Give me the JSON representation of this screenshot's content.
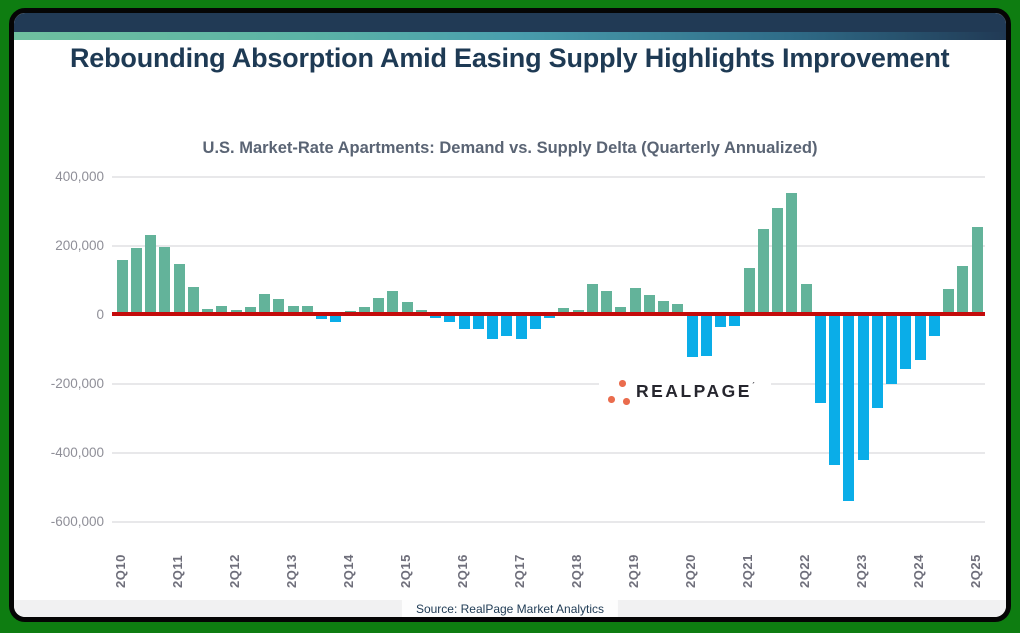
{
  "header": {
    "title": "Rebounding Absorption Amid Easing Supply Highlights Improvement"
  },
  "footer": {
    "source": "Source: RealPage Market Analytics"
  },
  "logo": {
    "name": "RealPage",
    "text": "REALPAGE",
    "dot_color": "#ea6c4d",
    "text_color": "#26262e"
  },
  "colors": {
    "frame_green": "#0e7d11",
    "frame_border": "#050505",
    "header_navy": "#213a55",
    "accent_gradient_left": "#6fc09f",
    "accent_gradient_right": "#213a55",
    "title_navy": "#1e3a54",
    "subtitle_gray": "#5a6474",
    "axis_label_gray": "#8f8f98",
    "grid_gray": "#e8e8ea"
  },
  "chart_data": {
    "type": "bar",
    "title": "U.S. Market-Rate Apartments: Demand vs. Supply Delta (Quarterly Annualized)",
    "xlabel": "",
    "ylabel": "",
    "ylim": [
      -600000,
      400000
    ],
    "yticks": [
      400000,
      200000,
      0,
      -200000,
      -400000,
      -600000
    ],
    "grid": true,
    "legend": "none",
    "zero_line": true,
    "x_tick_every": 4,
    "positive_color": "#63b39a",
    "negative_color": "#0aade8",
    "zero_line_color": "#c40b0b",
    "x": [
      "2Q10",
      "3Q10",
      "4Q10",
      "1Q11",
      "2Q11",
      "3Q11",
      "4Q11",
      "1Q12",
      "2Q12",
      "3Q12",
      "4Q12",
      "1Q13",
      "2Q13",
      "3Q13",
      "4Q13",
      "1Q14",
      "2Q14",
      "3Q14",
      "4Q14",
      "1Q15",
      "2Q15",
      "3Q15",
      "4Q15",
      "1Q16",
      "2Q16",
      "3Q16",
      "4Q16",
      "1Q17",
      "2Q17",
      "3Q17",
      "4Q17",
      "1Q18",
      "2Q18",
      "3Q18",
      "4Q18",
      "1Q19",
      "2Q19",
      "3Q19",
      "4Q19",
      "1Q20",
      "2Q20",
      "3Q20",
      "4Q20",
      "1Q21",
      "2Q21",
      "3Q21",
      "4Q21",
      "1Q22",
      "2Q22",
      "3Q22",
      "4Q22",
      "1Q23",
      "2Q23",
      "3Q23",
      "4Q23",
      "1Q24",
      "2Q24",
      "3Q24",
      "4Q24",
      "1Q25",
      "2Q25"
    ],
    "values": [
      158000,
      195000,
      232000,
      198000,
      147000,
      81000,
      18000,
      27000,
      14000,
      23000,
      60000,
      45000,
      25000,
      25000,
      -11000,
      -21000,
      12000,
      22000,
      50000,
      69000,
      38000,
      14000,
      -8000,
      -21000,
      -40000,
      -40000,
      -71000,
      -62000,
      -71000,
      -40000,
      -8000,
      20000,
      15000,
      90000,
      70000,
      24000,
      77000,
      57000,
      40000,
      33000,
      -122000,
      -119000,
      -35000,
      -31000,
      136000,
      250000,
      310000,
      355000,
      91000,
      -255000,
      -435000,
      -540000,
      -420000,
      -269000,
      -200000,
      -157000,
      -130000,
      -60000,
      74000,
      141000,
      255000
    ]
  }
}
